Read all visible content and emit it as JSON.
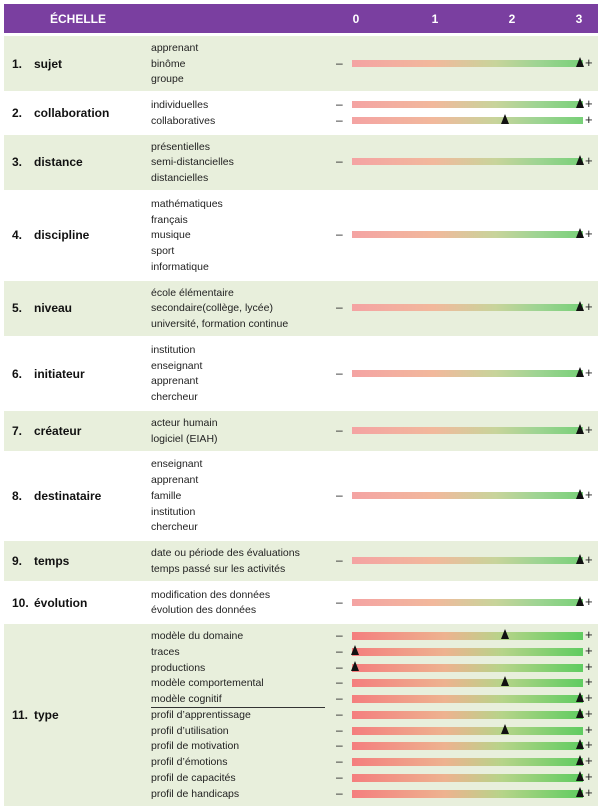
{
  "header": {
    "title": "ÉCHELLE",
    "ticks": [
      "0",
      "1",
      "2",
      "3"
    ]
  },
  "scale": {
    "minus": "–",
    "plus": "+",
    "max": 3
  },
  "sections": [
    {
      "number": "1.",
      "name": "sujet",
      "shaded": true,
      "options": [
        "apprenant",
        "binôme",
        "groupe"
      ],
      "scales": [
        {
          "value": 3
        }
      ]
    },
    {
      "number": "2.",
      "name": "collaboration",
      "shaded": false,
      "options": [
        "individuelles",
        "collaboratives"
      ],
      "scales": [
        {
          "value": 3
        },
        {
          "value": 2
        }
      ]
    },
    {
      "number": "3.",
      "name": "distance",
      "shaded": true,
      "options": [
        "présentielles",
        "semi-distancielles",
        "distancielles"
      ],
      "scales": [
        {
          "value": 3
        }
      ]
    },
    {
      "number": "4.",
      "name": "discipline",
      "shaded": false,
      "options": [
        "mathématiques",
        "français",
        "musique",
        "sport",
        "informatique"
      ],
      "scales": [
        {
          "value": 3
        }
      ]
    },
    {
      "number": "5.",
      "name": "niveau",
      "shaded": true,
      "options": [
        "école élémentaire",
        "secondaire(collège, lycée)",
        "université, formation  continue"
      ],
      "scales": [
        {
          "value": 3
        }
      ]
    },
    {
      "number": "6.",
      "name": "initiateur",
      "shaded": false,
      "options": [
        "institution",
        "enseignant",
        "apprenant",
        "chercheur"
      ],
      "scales": [
        {
          "value": 3
        }
      ]
    },
    {
      "number": "7.",
      "name": "créateur",
      "shaded": true,
      "options": [
        "acteur humain",
        "logiciel (EIAH)"
      ],
      "scales": [
        {
          "value": 3
        }
      ]
    },
    {
      "number": "8.",
      "name": "destinataire",
      "shaded": false,
      "options": [
        "enseignant",
        "apprenant",
        "famille",
        "institution",
        "chercheur"
      ],
      "scales": [
        {
          "value": 3
        }
      ]
    },
    {
      "number": "9.",
      "name": "temps",
      "shaded": true,
      "options": [
        "date ou période des évaluations",
        "temps passé sur les activités"
      ],
      "scales": [
        {
          "value": 3
        }
      ]
    },
    {
      "number": "10.",
      "name": "évolution",
      "shaded": false,
      "options": [
        "modification  des données",
        "évolution des données"
      ],
      "scales": [
        {
          "value": 3
        }
      ]
    },
    {
      "number": "11.",
      "name": "type",
      "shaded": true,
      "options": [
        "modèle du domaine",
        "traces",
        "productions",
        "modèle comportemental",
        "modèle cognitif",
        "profil d’apprentissage",
        "profil d’utilisation",
        "profil de motivation",
        "profil d’émotions",
        "profil de capacités",
        "profil de handicaps"
      ],
      "scales": [
        {
          "value": 2
        },
        {
          "value": 0
        },
        {
          "value": 0
        },
        {
          "value": 2
        },
        {
          "value": 3
        },
        {
          "value": 3
        },
        {
          "value": 2
        },
        {
          "value": 3
        },
        {
          "value": 3
        },
        {
          "value": 3
        },
        {
          "value": 3
        }
      ]
    }
  ]
}
